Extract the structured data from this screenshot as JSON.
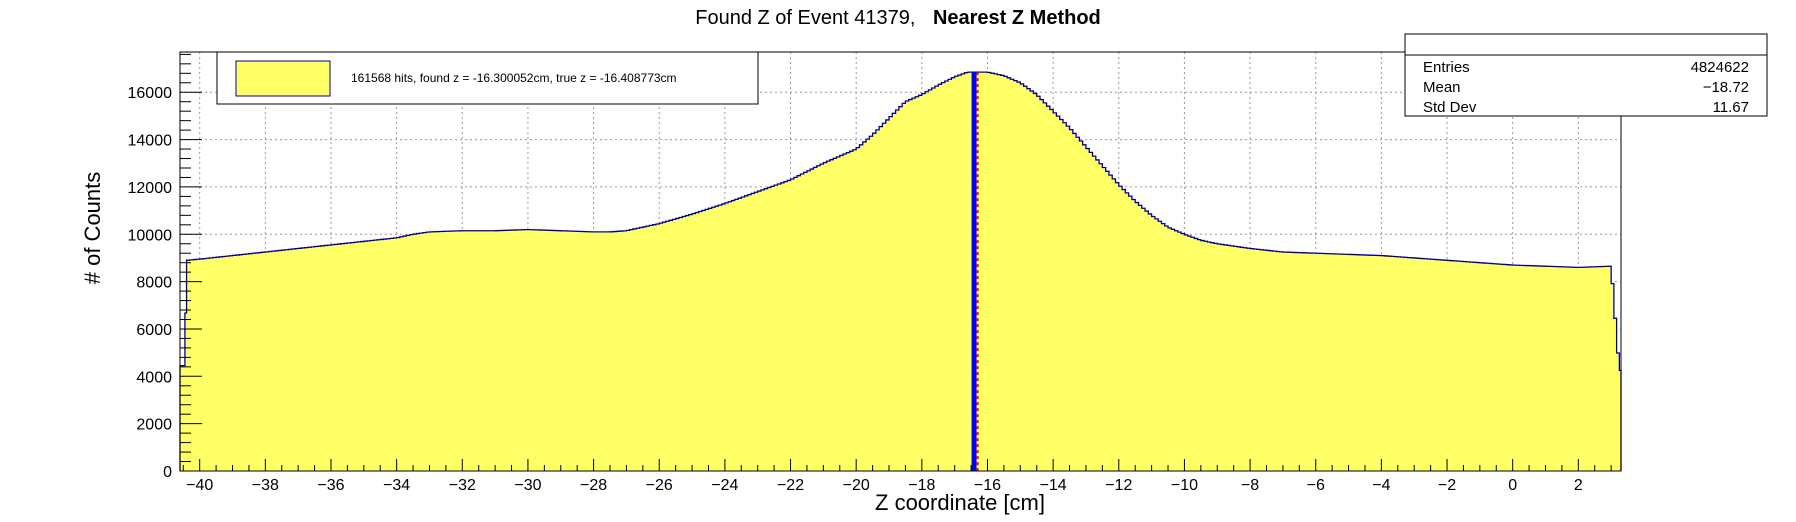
{
  "chart_data": {
    "type": "histogram",
    "title": {
      "prefix": "Found Z of Event 41379,",
      "method": "Nearest Z Method"
    },
    "xlabel": "Z coordinate [cm]",
    "ylabel": "# of Counts",
    "xlim": [
      -40.6,
      3.3
    ],
    "ylim": [
      0,
      17700
    ],
    "xticks": [
      -40,
      -38,
      -36,
      -34,
      -32,
      -30,
      -28,
      -26,
      -24,
      -22,
      -20,
      -18,
      -16,
      -14,
      -12,
      -10,
      -8,
      -6,
      -4,
      -2,
      0,
      2
    ],
    "yticks": [
      0,
      2000,
      4000,
      6000,
      8000,
      10000,
      12000,
      14000,
      16000
    ],
    "grid": true,
    "fill_color": "#ffff66",
    "line_color": "#000099",
    "profile": {
      "x": [
        -40.6,
        -40.45,
        -40.4,
        -40,
        -39,
        -38,
        -37,
        -36,
        -35,
        -34,
        -33.5,
        -33,
        -32,
        -31,
        -30,
        -29,
        -28,
        -27.5,
        -27,
        -26,
        -25,
        -24,
        -23,
        -22,
        -21,
        -20,
        -19.5,
        -19,
        -18.5,
        -18,
        -17.5,
        -17,
        -16.6,
        -16.4,
        -16,
        -15.5,
        -15,
        -14.5,
        -14,
        -13.5,
        -13,
        -12.5,
        -12,
        -11.5,
        -11,
        -10.5,
        -10,
        -9.5,
        -9,
        -8,
        -7,
        -6,
        -5,
        -4,
        -3,
        -2,
        -1,
        0,
        1,
        2,
        3,
        3.25,
        3.3
      ],
      "y": [
        4450,
        4450,
        8900,
        8950,
        9100,
        9250,
        9400,
        9550,
        9700,
        9850,
        10000,
        10100,
        10150,
        10150,
        10200,
        10150,
        10100,
        10100,
        10150,
        10450,
        10850,
        11300,
        11800,
        12300,
        13000,
        13600,
        14200,
        14900,
        15600,
        15900,
        16300,
        16650,
        16850,
        16850,
        16850,
        16700,
        16400,
        15900,
        15200,
        14500,
        13700,
        12900,
        12100,
        11400,
        10800,
        10300,
        10000,
        9750,
        9600,
        9400,
        9250,
        9200,
        9150,
        9100,
        9000,
        8900,
        8800,
        8700,
        8650,
        8600,
        8650,
        4250,
        4250
      ]
    },
    "lines": [
      {
        "name": "found",
        "x": -16.300052,
        "color": "#ff0000"
      },
      {
        "name": "true",
        "x": -16.408773,
        "color": "#0000ff"
      }
    ],
    "legend": {
      "position": "top-left",
      "label": "161568 hits, found z = -16.300052cm, true z = -16.408773cm"
    },
    "stats": {
      "position": "top-right",
      "rows": [
        {
          "label": "Entries",
          "value": "4824622"
        },
        {
          "label": "Mean",
          "value": "−18.72"
        },
        {
          "label": "Std Dev",
          "value": "11.67"
        }
      ]
    }
  }
}
